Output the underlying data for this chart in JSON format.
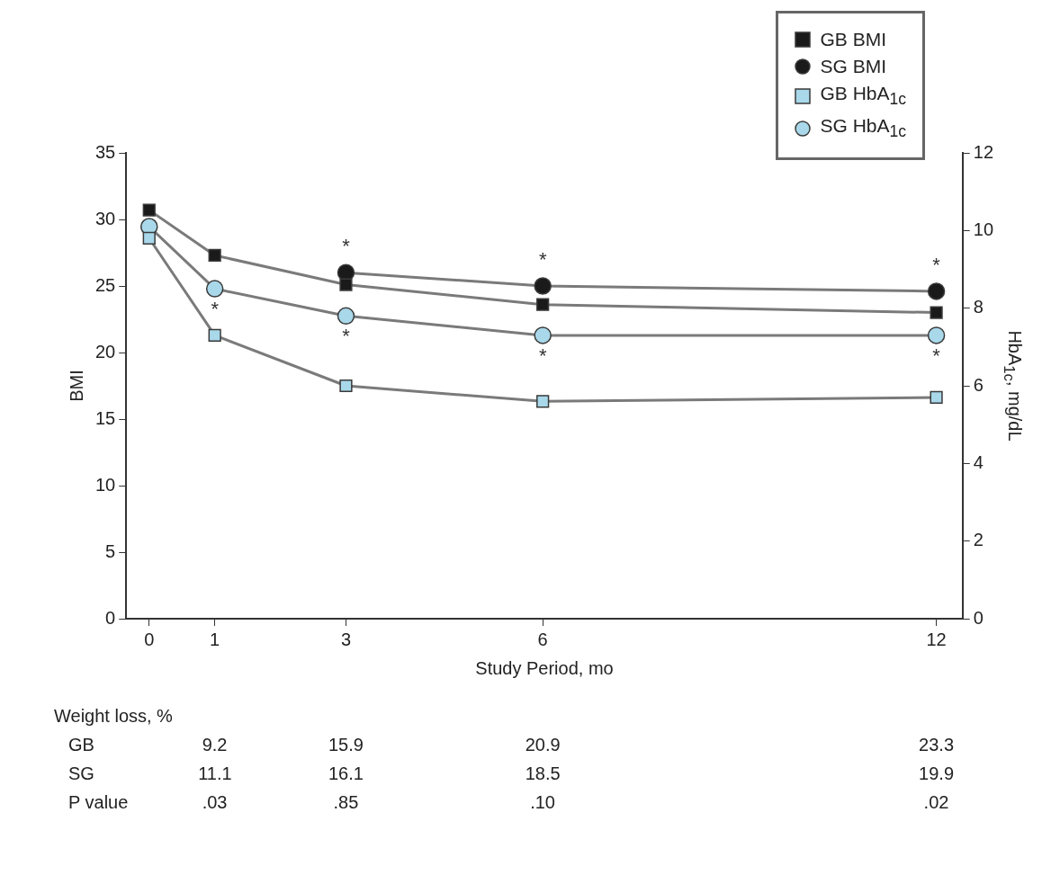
{
  "chart_data": {
    "type": "line",
    "xlabel": "Study Period, mo",
    "ylabel": "BMI",
    "y2label": "HbA$_{1c}$, mg/dL",
    "x": [
      0,
      1,
      3,
      6,
      12
    ],
    "series": [
      {
        "name": "GB BMI",
        "color": "#1a1a1a",
        "marker": "square",
        "values": [
          30.7,
          27.3,
          25.1,
          23.6,
          23.0
        ]
      },
      {
        "name": "SG BMI",
        "color": "#1a1a1a",
        "marker": "circle",
        "values": [
          null,
          null,
          26.0,
          25.0,
          24.6
        ]
      },
      {
        "name": "GB HbA$_{1c}$",
        "color": "#a9d8ea",
        "marker": "square",
        "axis": "y2",
        "values": [
          9.8,
          7.3,
          6.0,
          5.6,
          5.7
        ]
      },
      {
        "name": "SG HbA$_{1c}$",
        "color": "#a9d8ea",
        "marker": "circle",
        "axis": "y2",
        "values": [
          10.1,
          8.5,
          7.8,
          7.3,
          7.3
        ]
      }
    ],
    "xlim": [
      -0.35,
      12.4
    ],
    "xticks": [
      0,
      1,
      3,
      6,
      12
    ],
    "ylim": [
      0,
      35
    ],
    "yticks": [
      0,
      5,
      10,
      15,
      20,
      25,
      30,
      35
    ],
    "y2lim": [
      0,
      12
    ],
    "y2ticks": [
      0,
      2,
      4,
      6,
      8,
      10,
      12
    ],
    "grid": false,
    "legend": "top right",
    "annotations": [
      {
        "text": "*",
        "x": 1,
        "y": 24.8
      },
      {
        "text": "*",
        "x": 3,
        "y": 26.0
      },
      {
        "text": "*",
        "x": 3,
        "y": 22.8
      },
      {
        "text": "*",
        "x": 6,
        "y": 25.0
      },
      {
        "text": "*",
        "x": 6,
        "y": 21.3
      },
      {
        "text": "*",
        "x": 12,
        "y": 24.6
      },
      {
        "text": "*",
        "x": 12,
        "y": 21.3
      },
      "Weight loss, %",
      "GB",
      "9.2",
      "15.9",
      "20.9",
      "23.3",
      "SG",
      "11.1",
      "16.1",
      "18.5",
      "19.9",
      "P value",
      ".03",
      ".85",
      ".10",
      ".02"
    ]
  }
}
